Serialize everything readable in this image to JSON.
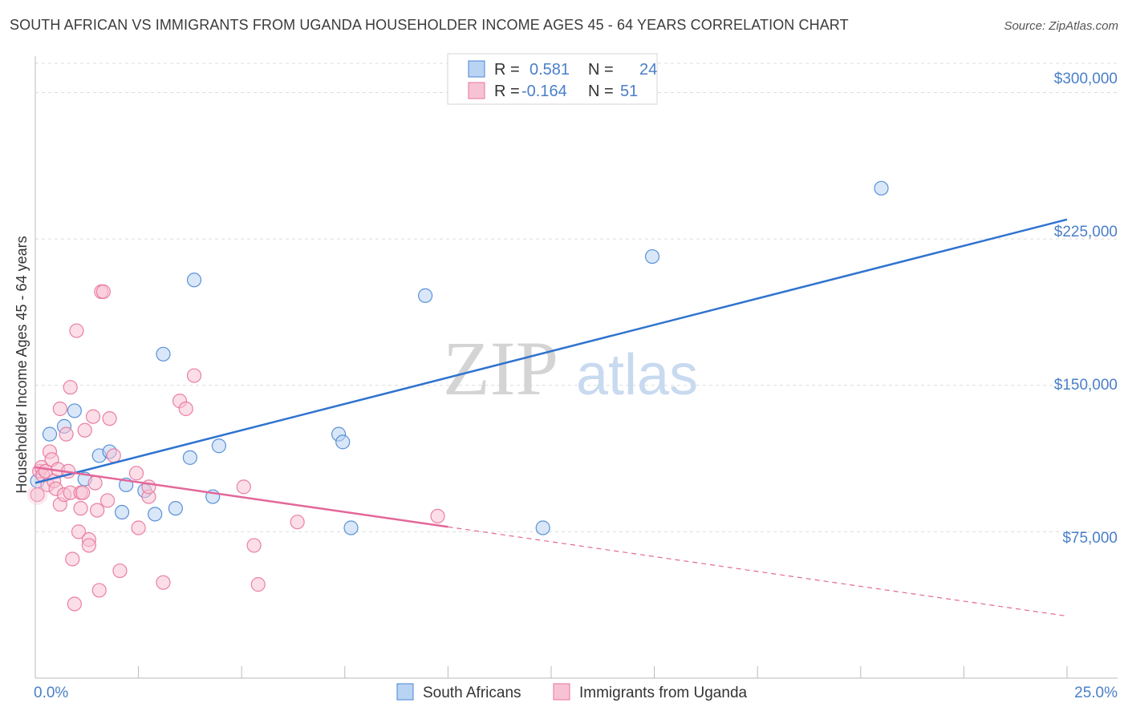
{
  "title": "SOUTH AFRICAN VS IMMIGRANTS FROM UGANDA HOUSEHOLDER INCOME AGES 45 - 64 YEARS CORRELATION CHART",
  "source": "Source: ZipAtlas.com",
  "watermark": {
    "zip": "ZIP",
    "atlas": "atlas"
  },
  "colors": {
    "blue": "#4a86d4",
    "blue_fill": "#b9d3f3",
    "pink": "#e8739c",
    "pink_fill": "#f7c3d4",
    "tick_text": "#4a7fc8",
    "grid": "#dddddd"
  },
  "legend": {
    "rows": [
      {
        "r_label": "R =",
        "r_value": "0.581",
        "n_label": "N =",
        "n_value": "24"
      },
      {
        "r_label": "R =",
        "r_value": "-0.164",
        "n_label": "N =",
        "n_value": "51"
      }
    ]
  },
  "chart_data": {
    "type": "scatter",
    "xlabel": "",
    "ylabel": "Householder Income Ages 45 - 64 years",
    "xlim": [
      0,
      25
    ],
    "ylim": [
      0,
      315000
    ],
    "x_tick_labels": [
      "0.0%",
      "25.0%"
    ],
    "y_ticks": [
      75000,
      150000,
      225000,
      300000
    ],
    "y_tick_labels": [
      "$75,000",
      "$150,000",
      "$225,000",
      "$300,000"
    ],
    "grid": true,
    "series": [
      {
        "name": "South Africans",
        "color": "#4a86d4",
        "points": [
          [
            0.05,
            101000
          ],
          [
            0.35,
            125000
          ],
          [
            0.7,
            129000
          ],
          [
            0.95,
            137000
          ],
          [
            1.2,
            102000
          ],
          [
            1.55,
            114000
          ],
          [
            1.8,
            116000
          ],
          [
            2.1,
            85000
          ],
          [
            2.2,
            99000
          ],
          [
            2.65,
            96000
          ],
          [
            2.9,
            84000
          ],
          [
            3.1,
            166000
          ],
          [
            3.4,
            87000
          ],
          [
            3.75,
            113000
          ],
          [
            3.85,
            204000
          ],
          [
            4.3,
            93000
          ],
          [
            4.45,
            119000
          ],
          [
            7.35,
            125000
          ],
          [
            7.45,
            121000
          ],
          [
            7.65,
            77000
          ],
          [
            9.45,
            196000
          ],
          [
            12.3,
            77000
          ],
          [
            14.95,
            216000
          ],
          [
            20.5,
            251000
          ]
        ],
        "trend": {
          "x": [
            0,
            25
          ],
          "y": [
            100000,
            235000
          ],
          "style": "solid"
        }
      },
      {
        "name": "Immigrants from Uganda",
        "color": "#e8739c",
        "points": [
          [
            0.05,
            94000
          ],
          [
            0.1,
            106000
          ],
          [
            0.15,
            108000
          ],
          [
            0.18,
            104000
          ],
          [
            0.25,
            106000
          ],
          [
            0.3,
            99000
          ],
          [
            0.35,
            116000
          ],
          [
            0.4,
            112000
          ],
          [
            0.45,
            101000
          ],
          [
            0.5,
            97000
          ],
          [
            0.55,
            107000
          ],
          [
            0.6,
            138000
          ],
          [
            0.6,
            89000
          ],
          [
            0.7,
            94000
          ],
          [
            0.75,
            125000
          ],
          [
            0.8,
            106000
          ],
          [
            0.85,
            95000
          ],
          [
            0.85,
            149000
          ],
          [
            0.9,
            61000
          ],
          [
            0.95,
            38000
          ],
          [
            1.0,
            178000
          ],
          [
            1.05,
            75000
          ],
          [
            1.1,
            95000
          ],
          [
            1.1,
            87000
          ],
          [
            1.15,
            95000
          ],
          [
            1.2,
            127000
          ],
          [
            1.3,
            71000
          ],
          [
            1.3,
            68000
          ],
          [
            1.4,
            134000
          ],
          [
            1.45,
            100000
          ],
          [
            1.5,
            86000
          ],
          [
            1.55,
            45000
          ],
          [
            1.6,
            198000
          ],
          [
            1.65,
            198000
          ],
          [
            1.75,
            91000
          ],
          [
            1.8,
            133000
          ],
          [
            1.9,
            114000
          ],
          [
            2.05,
            55000
          ],
          [
            2.45,
            105000
          ],
          [
            2.5,
            77000
          ],
          [
            2.75,
            93000
          ],
          [
            2.75,
            98000
          ],
          [
            3.1,
            49000
          ],
          [
            3.5,
            142000
          ],
          [
            3.65,
            138000
          ],
          [
            3.85,
            155000
          ],
          [
            5.05,
            98000
          ],
          [
            5.3,
            68000
          ],
          [
            5.4,
            48000
          ],
          [
            6.35,
            80000
          ],
          [
            9.75,
            83000
          ]
        ],
        "trend": {
          "x": [
            0,
            10
          ],
          "y": [
            108000,
            77500
          ],
          "style": "solid"
        },
        "trend_extension": {
          "x": [
            10,
            25
          ],
          "y": [
            77500,
            31800
          ],
          "style": "dashed"
        }
      }
    ]
  }
}
